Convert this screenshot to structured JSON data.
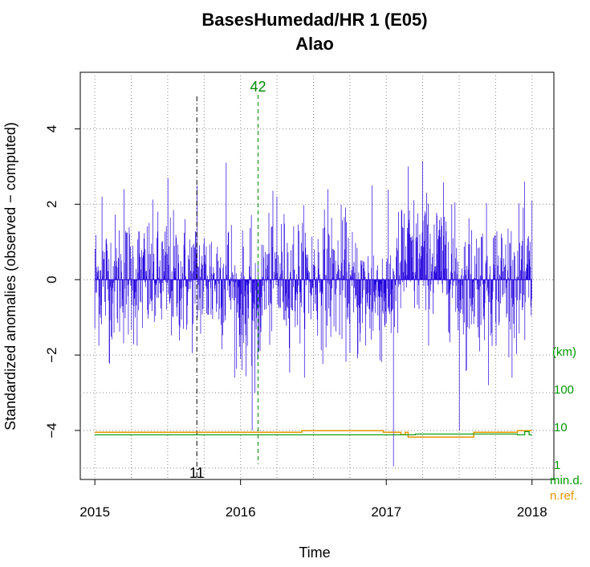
{
  "chart_data": {
    "type": "bar",
    "title": "BasesHumedad/HR   1 (E05)",
    "subtitle": "Alao",
    "xlabel": "Time",
    "ylabel": "Standardized anomalies (observed − computed)",
    "x_ticks": [
      "2015",
      "2016",
      "2017",
      "2018"
    ],
    "y_ticks": [
      "−4",
      "−2",
      "0",
      "2",
      "4"
    ],
    "xlim": [
      2014.9,
      2018.15
    ],
    "ylim": [
      -5.3,
      5.5
    ],
    "grid": true,
    "series": [
      {
        "values_note": "daily standardized anomalies, 2015-01-01 to 2017-12-31",
        "color": "#2200dd",
        "x_start": 2015.0,
        "x_end": 2018.0,
        "key_points": [
          {
            "x": 2015.0,
            "y": -1.3
          },
          {
            "x": 2015.05,
            "y": 2.2
          },
          {
            "x": 2015.1,
            "y": -2.2
          },
          {
            "x": 2015.2,
            "y": 2.4
          },
          {
            "x": 2015.5,
            "y": -2.2
          },
          {
            "x": 2015.5,
            "y": 2.7
          },
          {
            "x": 2015.7,
            "y": 2.5
          },
          {
            "x": 2015.9,
            "y": 3.1
          },
          {
            "x": 2016.0,
            "y": -2.1
          },
          {
            "x": 2016.08,
            "y": -4.0
          },
          {
            "x": 2016.1,
            "y": -3.0
          },
          {
            "x": 2016.25,
            "y": 2.2
          },
          {
            "x": 2016.6,
            "y": 2.4
          },
          {
            "x": 2016.9,
            "y": 2.5
          },
          {
            "x": 2017.05,
            "y": -4.95
          },
          {
            "x": 2017.15,
            "y": 3.0
          },
          {
            "x": 2017.25,
            "y": 3.15
          },
          {
            "x": 2017.45,
            "y": 2.0
          },
          {
            "x": 2017.5,
            "y": -4.0
          },
          {
            "x": 2017.55,
            "y": -2.4
          },
          {
            "x": 2017.7,
            "y": -2.8
          },
          {
            "x": 2017.95,
            "y": -1.6
          },
          {
            "x": 2018.0,
            "y": 2.1
          }
        ]
      }
    ],
    "vertical_markers": [
      {
        "x": 2015.7,
        "label": "11",
        "color": "#000000",
        "style": "dashdot"
      },
      {
        "x": 2016.12,
        "label": "42",
        "color": "#008800",
        "style": "dashed"
      }
    ],
    "right_axis": {
      "label_top": "(km)",
      "ticks": [
        "100",
        "10",
        "1"
      ],
      "label_bottom": "min.d.",
      "label_bottom2": "n.ref.",
      "color_green": "#009900",
      "color_orange": "#e69500"
    },
    "bottom_lines": [
      {
        "name": "min.d.",
        "color": "#009900",
        "level_km": 6
      },
      {
        "name": "n.ref.",
        "color": "#e69500",
        "level_km": 7
      }
    ]
  }
}
